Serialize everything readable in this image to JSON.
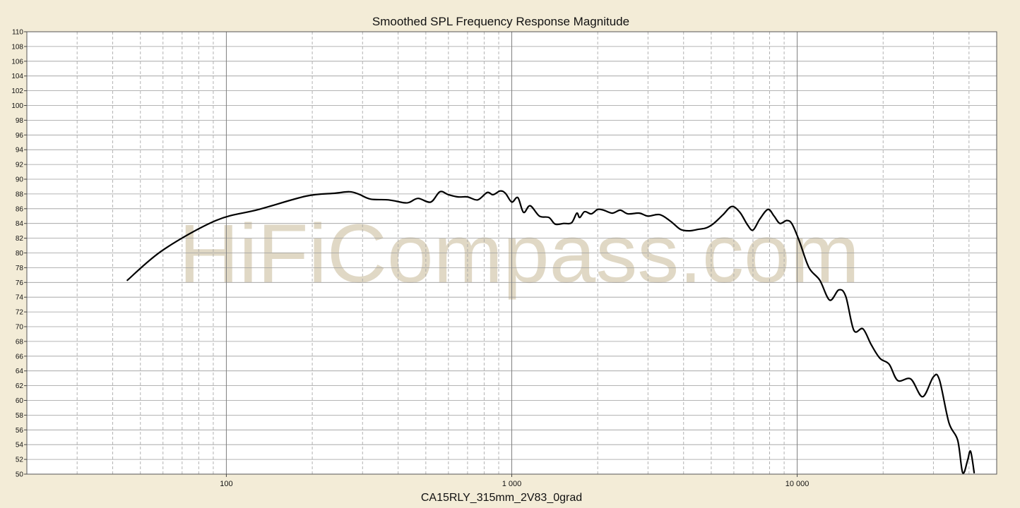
{
  "chart_data": {
    "type": "line",
    "title": "Smoothed SPL Frequency Response Magnitude",
    "xlabel": "CA15RLY_315mm_2V83_0grad",
    "ylabel": "",
    "xscale": "log",
    "xlim": [
      20,
      50000
    ],
    "ylim": [
      50,
      110
    ],
    "grid": true,
    "watermark": "HiFiCompass.com",
    "colors": {
      "background": "#f3ecd7",
      "plot_area": "#ffffff",
      "line": "#000000",
      "grid": "#9a9a9a",
      "watermark": "#e0d8c5"
    },
    "x_ticks": [
      {
        "value": 100,
        "label": "100"
      },
      {
        "value": 1000,
        "label": "1 000"
      },
      {
        "value": 10000,
        "label": "10 000"
      }
    ],
    "y_ticks": [
      50,
      52,
      54,
      56,
      58,
      60,
      62,
      64,
      66,
      68,
      70,
      72,
      74,
      76,
      78,
      80,
      82,
      84,
      86,
      88,
      90,
      92,
      94,
      96,
      98,
      100,
      102,
      104,
      106,
      108,
      110
    ],
    "series": [
      {
        "name": "",
        "points": [
          [
            45,
            76.3
          ],
          [
            60,
            80.4
          ],
          [
            92,
            84.4
          ],
          [
            130,
            85.9
          ],
          [
            190,
            87.7
          ],
          [
            240,
            88.1
          ],
          [
            270,
            88.3
          ],
          [
            290,
            88.0
          ],
          [
            320,
            87.3
          ],
          [
            370,
            87.2
          ],
          [
            420,
            86.8
          ],
          [
            440,
            86.9
          ],
          [
            470,
            87.4
          ],
          [
            520,
            86.9
          ],
          [
            560,
            88.3
          ],
          [
            600,
            87.9
          ],
          [
            650,
            87.6
          ],
          [
            700,
            87.6
          ],
          [
            760,
            87.2
          ],
          [
            820,
            88.2
          ],
          [
            860,
            87.9
          ],
          [
            910,
            88.4
          ],
          [
            950,
            88.1
          ],
          [
            1000,
            86.9
          ],
          [
            1050,
            87.5
          ],
          [
            1100,
            85.5
          ],
          [
            1160,
            86.4
          ],
          [
            1250,
            85.0
          ],
          [
            1350,
            84.8
          ],
          [
            1420,
            83.9
          ],
          [
            1520,
            84.0
          ],
          [
            1620,
            84.1
          ],
          [
            1690,
            85.4
          ],
          [
            1730,
            84.8
          ],
          [
            1800,
            85.6
          ],
          [
            1900,
            85.3
          ],
          [
            2000,
            85.9
          ],
          [
            2100,
            85.8
          ],
          [
            2250,
            85.4
          ],
          [
            2400,
            85.8
          ],
          [
            2550,
            85.3
          ],
          [
            2800,
            85.4
          ],
          [
            3000,
            85.0
          ],
          [
            3300,
            85.2
          ],
          [
            3600,
            84.3
          ],
          [
            3900,
            83.2
          ],
          [
            4200,
            83.0
          ],
          [
            4500,
            83.2
          ],
          [
            4800,
            83.4
          ],
          [
            5100,
            84.0
          ],
          [
            5500,
            85.2
          ],
          [
            5900,
            86.3
          ],
          [
            6300,
            85.5
          ],
          [
            6700,
            83.8
          ],
          [
            7000,
            83.1
          ],
          [
            7400,
            84.6
          ],
          [
            7900,
            85.9
          ],
          [
            8300,
            85.0
          ],
          [
            8700,
            84.0
          ],
          [
            9200,
            84.4
          ],
          [
            9600,
            83.9
          ],
          [
            10200,
            81.5
          ],
          [
            11000,
            78.0
          ],
          [
            12000,
            76.3
          ],
          [
            13000,
            73.6
          ],
          [
            14000,
            75.0
          ],
          [
            14800,
            74.1
          ],
          [
            15800,
            69.5
          ],
          [
            17000,
            69.7
          ],
          [
            18200,
            67.5
          ],
          [
            19500,
            65.7
          ],
          [
            21000,
            64.9
          ],
          [
            22500,
            62.7
          ],
          [
            25000,
            62.9
          ],
          [
            27500,
            60.5
          ],
          [
            30000,
            63.2
          ],
          [
            31500,
            62.8
          ],
          [
            34000,
            57.0
          ],
          [
            36500,
            54.6
          ],
          [
            38000,
            50.2
          ],
          [
            39500,
            51.8
          ],
          [
            40500,
            53.1
          ],
          [
            41700,
            50.2
          ]
        ]
      }
    ]
  }
}
